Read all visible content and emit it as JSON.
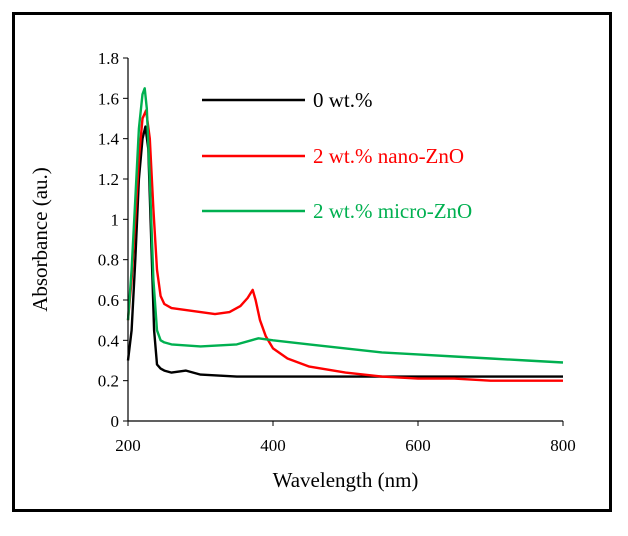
{
  "chart_data": {
    "type": "line",
    "xlabel": "Wavelength (nm)",
    "ylabel": "Absorbance (au.)",
    "xlim": [
      200,
      800
    ],
    "ylim": [
      0,
      1.8
    ],
    "xticks": [
      200,
      400,
      600,
      800
    ],
    "yticks": [
      0,
      0.2,
      0.4,
      0.6,
      0.8,
      1,
      1.2,
      1.4,
      1.6,
      1.8
    ],
    "xtick_labels": [
      "200",
      "400",
      "600",
      "800"
    ],
    "ytick_labels": [
      "0",
      "0.2",
      "0.4",
      "0.6",
      "0.8",
      "1",
      "1.2",
      "1.4",
      "1.6",
      "1.8"
    ],
    "grid": false,
    "legend_position": "top-right",
    "series": [
      {
        "name": "0 wt.%",
        "color": "#000000",
        "x": [
          200,
          205,
          210,
          215,
          220,
          224,
          228,
          232,
          236,
          240,
          245,
          250,
          260,
          280,
          300,
          350,
          400,
          500,
          600,
          700,
          800
        ],
        "y": [
          0.3,
          0.45,
          0.8,
          1.2,
          1.4,
          1.46,
          1.35,
          0.9,
          0.45,
          0.28,
          0.26,
          0.25,
          0.24,
          0.25,
          0.23,
          0.22,
          0.22,
          0.22,
          0.22,
          0.22,
          0.22
        ]
      },
      {
        "name": "2 wt.% nano-ZnO",
        "color": "#ff0000",
        "x": [
          200,
          205,
          210,
          215,
          220,
          225,
          230,
          235,
          240,
          245,
          250,
          260,
          280,
          300,
          320,
          340,
          355,
          365,
          372,
          376,
          382,
          390,
          400,
          420,
          450,
          500,
          550,
          600,
          650,
          700,
          750,
          800
        ],
        "y": [
          0.5,
          0.7,
          1.0,
          1.3,
          1.5,
          1.54,
          1.4,
          1.05,
          0.75,
          0.62,
          0.58,
          0.56,
          0.55,
          0.54,
          0.53,
          0.54,
          0.57,
          0.61,
          0.65,
          0.6,
          0.5,
          0.42,
          0.36,
          0.31,
          0.27,
          0.24,
          0.22,
          0.21,
          0.21,
          0.2,
          0.2,
          0.2
        ]
      },
      {
        "name": "2 wt.% micro-ZnO",
        "color": "#00b050",
        "x": [
          200,
          205,
          210,
          215,
          220,
          223,
          226,
          230,
          235,
          240,
          245,
          250,
          260,
          300,
          350,
          370,
          380,
          400,
          450,
          500,
          550,
          600,
          650,
          700,
          750,
          800
        ],
        "y": [
          0.5,
          0.75,
          1.1,
          1.45,
          1.62,
          1.65,
          1.55,
          1.2,
          0.7,
          0.45,
          0.4,
          0.39,
          0.38,
          0.37,
          0.38,
          0.4,
          0.41,
          0.4,
          0.38,
          0.36,
          0.34,
          0.33,
          0.32,
          0.31,
          0.3,
          0.29
        ]
      }
    ]
  }
}
